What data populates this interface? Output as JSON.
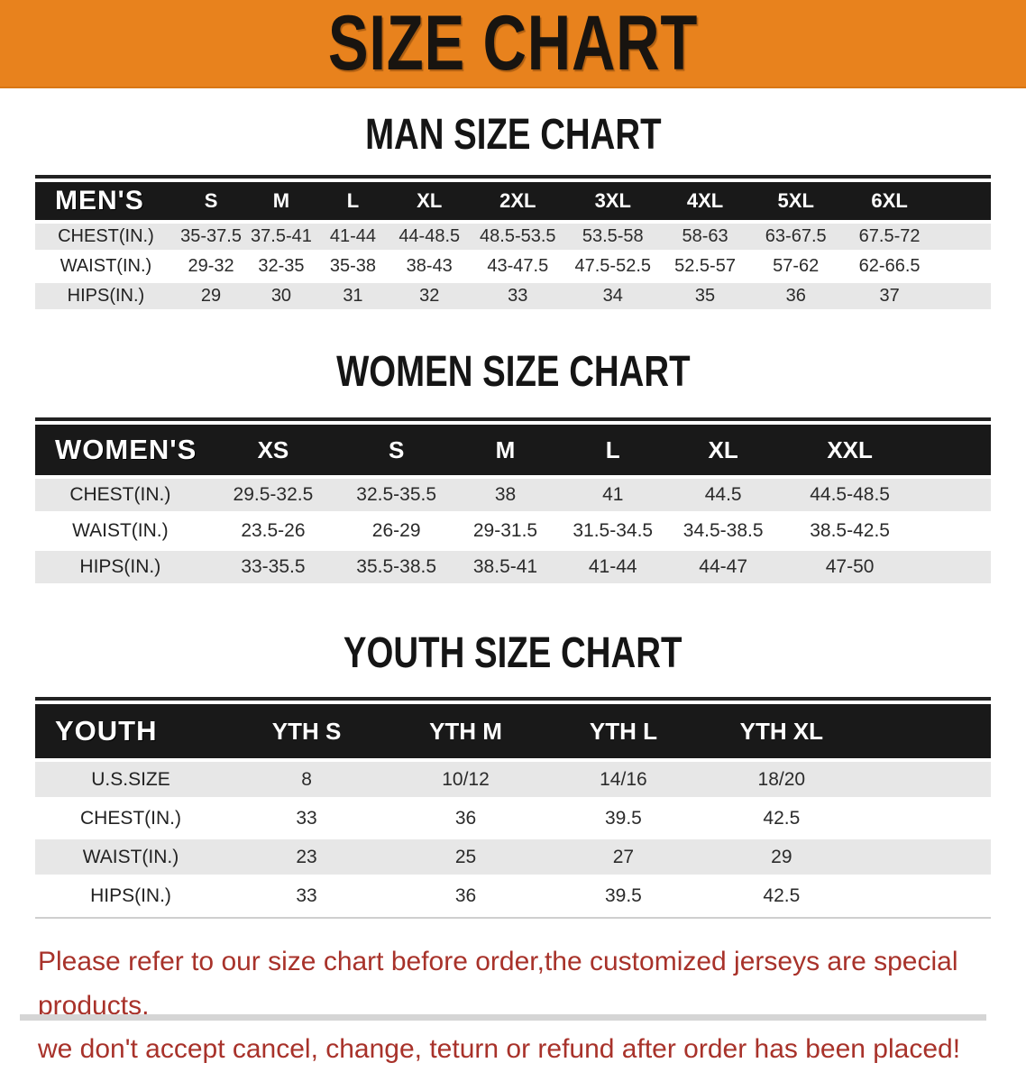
{
  "theme": {
    "banner_orange": "#e8821d",
    "table_header_black": "#191919",
    "row_stripe_gray": "#e7e7e7",
    "disclaimer_red": "#a8322a"
  },
  "banner": {
    "title": "SIZE CHART"
  },
  "sections": [
    {
      "title": "MAN SIZE CHART",
      "table": {
        "header": [
          "MEN'S",
          "S",
          "M",
          "L",
          "XL",
          "2XL",
          "3XL",
          "4XL",
          "5XL",
          "6XL"
        ],
        "rows": [
          {
            "label": "CHEST(IN.)",
            "values": [
              "35-37.5",
              "37.5-41",
              "41-44",
              "44-48.5",
              "48.5-53.5",
              "53.5-58",
              "58-63",
              "63-67.5",
              "67.5-72"
            ]
          },
          {
            "label": "WAIST(IN.)",
            "values": [
              "29-32",
              "32-35",
              "35-38",
              "38-43",
              "43-47.5",
              "47.5-52.5",
              "52.5-57",
              "57-62",
              "62-66.5"
            ]
          },
          {
            "label": "HIPS(IN.)",
            "values": [
              "29",
              "30",
              "31",
              "32",
              "33",
              "34",
              "35",
              "36",
              "37"
            ]
          }
        ]
      }
    },
    {
      "title": "WOMEN SIZE CHART",
      "table": {
        "header": [
          "WOMEN'S",
          "XS",
          "S",
          "M",
          "L",
          "XL",
          "XXL"
        ],
        "rows": [
          {
            "label": "CHEST(IN.)",
            "values": [
              "29.5-32.5",
              "32.5-35.5",
              "38",
              "41",
              "44.5",
              "44.5-48.5"
            ]
          },
          {
            "label": "WAIST(IN.)",
            "values": [
              "23.5-26",
              "26-29",
              "29-31.5",
              "31.5-34.5",
              "34.5-38.5",
              "38.5-42.5"
            ]
          },
          {
            "label": "HIPS(IN.)",
            "values": [
              "33-35.5",
              "35.5-38.5",
              "38.5-41",
              "41-44",
              "44-47",
              "47-50"
            ]
          }
        ]
      }
    },
    {
      "title": "YOUTH SIZE CHART",
      "table": {
        "header": [
          "YOUTH",
          "YTH S",
          "YTH M",
          "YTH L",
          "YTH XL"
        ],
        "rows": [
          {
            "label": "U.S.SIZE",
            "values": [
              "8",
              "10/12",
              "14/16",
              "18/20"
            ]
          },
          {
            "label": "CHEST(IN.)",
            "values": [
              "33",
              "36",
              "39.5",
              "42.5"
            ]
          },
          {
            "label": "WAIST(IN.)",
            "values": [
              "23",
              "25",
              "27",
              "29"
            ]
          },
          {
            "label": "HIPS(IN.)",
            "values": [
              "33",
              "36",
              "39.5",
              "42.5"
            ]
          }
        ]
      }
    }
  ],
  "disclaimer": {
    "line1": "Please refer to our size chart before order,the customized jerseys are special products,",
    "line2": "we don't accept cancel, change, teturn or refund after order has been placed!"
  }
}
